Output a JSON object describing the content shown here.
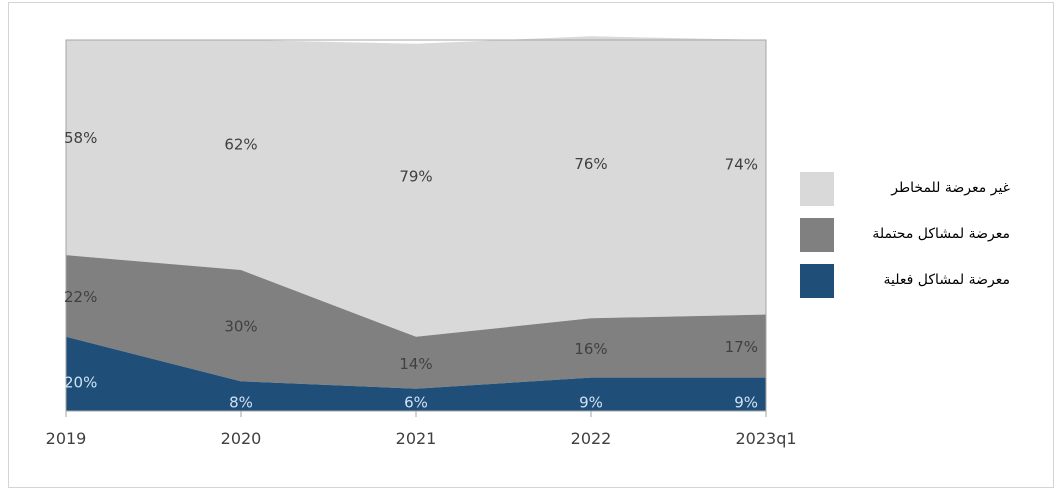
{
  "chart_data": {
    "type": "area",
    "stacked": true,
    "normalized_percent": true,
    "categories": [
      "2019",
      "2020",
      "2021",
      "2022",
      "2023q1"
    ],
    "series": [
      {
        "name": "معرضة لمشاكل فعلية",
        "values": [
          20,
          8,
          6,
          9,
          9
        ],
        "color": "#1f4e79",
        "label_color": "#cfe2f3"
      },
      {
        "name": "معرضة لمشاكل محتملة",
        "values": [
          22,
          30,
          14,
          16,
          17
        ],
        "color": "#808080",
        "label_color": "#404040"
      },
      {
        "name": "غير معرضة للمخاطر",
        "values": [
          58,
          62,
          79,
          76,
          74
        ],
        "color": "#d9d9d9",
        "label_color": "#404040"
      }
    ],
    "data_labels": [
      [
        "20%",
        "8%",
        "6%",
        "9%",
        "9%"
      ],
      [
        "22%",
        "30%",
        "14%",
        "16%",
        "17%"
      ],
      [
        "58%",
        "62%",
        "79%",
        "76%",
        "74%"
      ]
    ],
    "ylim": [
      0,
      100
    ],
    "legend_position": "right",
    "legend_order": [
      2,
      1,
      0
    ],
    "grid": false
  }
}
